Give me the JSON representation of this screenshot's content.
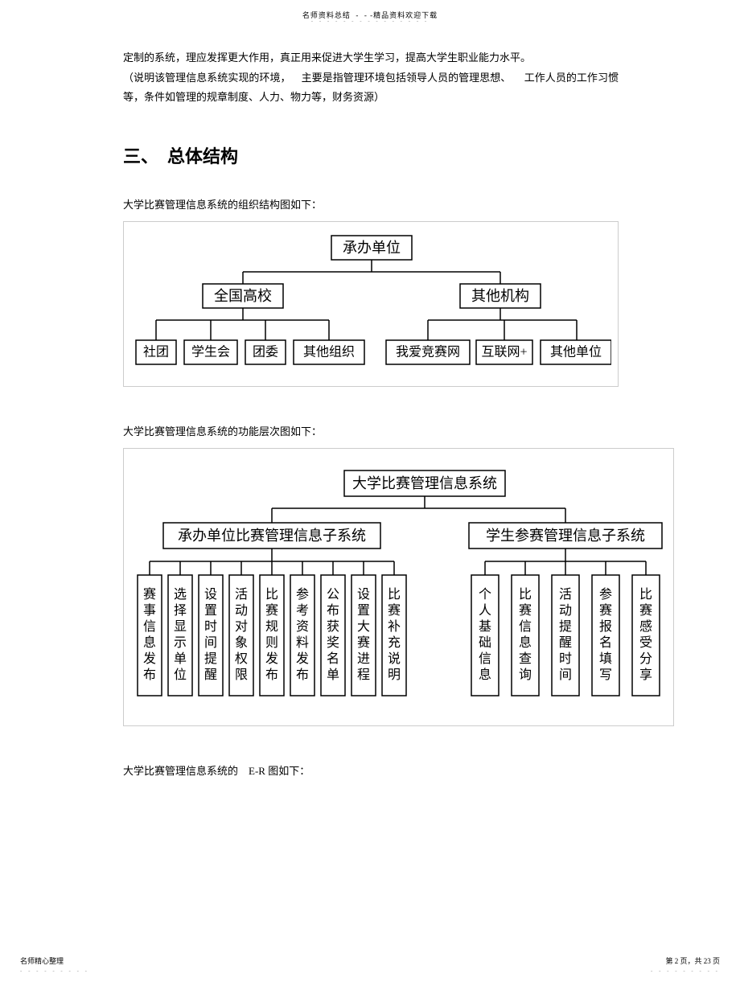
{
  "header": {
    "text": "名师资料总结  -  - -精品资料欢迎下载",
    "dots": "- - - - - - - - - - - - - - -"
  },
  "para1": "定制的系统，理应发挥更大作用，真正用来促进大学生学习，提高大学生职业能力水平。",
  "para2": "（说明该管理信息系统实现的环境，    主要是指管理环境包括领导人员的管理思想、     工作人员的工作习惯等，条件如管理的规章制度、人力、物力等，财务资源）",
  "heading": "三、  总体结构",
  "caption1": "大学比赛管理信息系统的组织结构图如下：",
  "caption2": "大学比赛管理信息系统的功能层次图如下：",
  "caption3_a": "大学比赛管理信息系统的",
  "caption3_b": "E-R 图如下：",
  "diagram1": {
    "root": "承办单位",
    "level2": [
      "全国高校",
      "其他机构"
    ],
    "leaves_left": [
      "社团",
      "学生会",
      "团委",
      "其他组织"
    ],
    "leaves_right": [
      "我爱竞赛网",
      "互联网+",
      "其他单位"
    ],
    "box_stroke": "#000000",
    "box_fill": "#ffffff",
    "line_color": "#000000"
  },
  "diagram2": {
    "root": "大学比赛管理信息系统",
    "level2_left": "承办单位比赛管理信息子系统",
    "level2_right": "学生参赛管理信息子系统",
    "leaves_left": [
      "赛事信息发布",
      "选择显示单位",
      "设置时间提醒",
      "活动对象权限",
      "比赛规则发布",
      "参考资料发布",
      "公布获奖名单",
      "设置大赛进程",
      "比赛补充说明"
    ],
    "leaves_right": [
      "个人基础信息",
      "比赛信息查询",
      "活动提醒时间",
      "参赛报名填写",
      "比赛感受分享"
    ],
    "box_stroke": "#000000",
    "box_fill": "#ffffff",
    "line_color": "#000000"
  },
  "footer": {
    "left": "名师精心整理",
    "right_a": "第 2 页，共 23 页",
    "dots": "- - - - - - - - -"
  }
}
